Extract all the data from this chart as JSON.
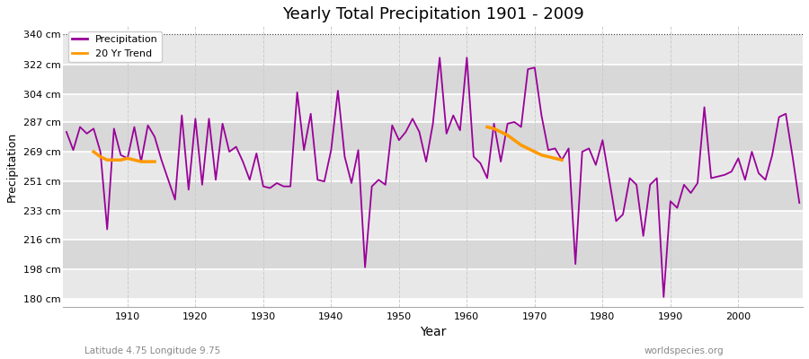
{
  "title": "Yearly Total Precipitation 1901 - 2009",
  "xlabel": "Year",
  "ylabel": "Precipitation",
  "subtitle_left": "Latitude 4.75 Longitude 9.75",
  "subtitle_right": "worldspecies.org",
  "ytick_labels": [
    "180 cm",
    "198 cm",
    "216 cm",
    "233 cm",
    "251 cm",
    "269 cm",
    "287 cm",
    "304 cm",
    "322 cm",
    "340 cm"
  ],
  "ytick_values": [
    180,
    198,
    216,
    233,
    251,
    269,
    287,
    304,
    322,
    340
  ],
  "ylim": [
    175,
    345
  ],
  "xlim": [
    1901,
    2009
  ],
  "years": [
    1901,
    1902,
    1903,
    1904,
    1905,
    1906,
    1907,
    1908,
    1909,
    1910,
    1911,
    1912,
    1913,
    1914,
    1915,
    1916,
    1917,
    1918,
    1919,
    1920,
    1921,
    1922,
    1923,
    1924,
    1925,
    1926,
    1927,
    1928,
    1929,
    1930,
    1931,
    1932,
    1933,
    1934,
    1935,
    1936,
    1937,
    1938,
    1939,
    1940,
    1941,
    1942,
    1943,
    1944,
    1945,
    1946,
    1947,
    1948,
    1949,
    1950,
    1951,
    1952,
    1953,
    1954,
    1955,
    1956,
    1957,
    1958,
    1959,
    1960,
    1961,
    1962,
    1963,
    1964,
    1965,
    1966,
    1967,
    1968,
    1969,
    1970,
    1971,
    1972,
    1973,
    1974,
    1975,
    1976,
    1977,
    1978,
    1979,
    1980,
    1981,
    1982,
    1983,
    1984,
    1985,
    1986,
    1987,
    1988,
    1989,
    1990,
    1991,
    1992,
    1993,
    1994,
    1995,
    1996,
    1997,
    1998,
    1999,
    2000,
    2001,
    2002,
    2003,
    2004,
    2005,
    2006,
    2007,
    2008,
    2009
  ],
  "precipitation": [
    281,
    270,
    284,
    280,
    283,
    269,
    222,
    283,
    267,
    265,
    284,
    263,
    285,
    278,
    264,
    252,
    240,
    291,
    246,
    289,
    249,
    289,
    252,
    286,
    269,
    272,
    263,
    252,
    268,
    248,
    247,
    250,
    248,
    248,
    305,
    270,
    292,
    252,
    251,
    270,
    306,
    266,
    250,
    270,
    199,
    248,
    252,
    249,
    285,
    276,
    281,
    289,
    281,
    263,
    286,
    326,
    280,
    291,
    282,
    326,
    266,
    262,
    253,
    286,
    263,
    286,
    287,
    284,
    319,
    320,
    291,
    270,
    271,
    264,
    271,
    201,
    269,
    271,
    261,
    276,
    252,
    227,
    231,
    253,
    249,
    218,
    249,
    253,
    181,
    239,
    235,
    249,
    244,
    250,
    296,
    253,
    254,
    255,
    257,
    265,
    252,
    269,
    256,
    252,
    267,
    290,
    292,
    266,
    238
  ],
  "trend_years_1": [
    1905,
    1906,
    1907,
    1908,
    1909,
    1910,
    1911,
    1912,
    1913,
    1914
  ],
  "trend_vals_1": [
    269,
    266,
    264,
    264,
    264,
    265,
    264,
    263,
    263,
    263
  ],
  "trend_years_2": [
    1963,
    1964,
    1965,
    1966,
    1967,
    1968,
    1969,
    1970,
    1971,
    1972,
    1973,
    1974
  ],
  "trend_vals_2": [
    284,
    283,
    281,
    279,
    276,
    273,
    271,
    269,
    267,
    266,
    265,
    264
  ],
  "precip_color": "#990099",
  "trend_color": "#ff9900",
  "bg_color": "#ffffff",
  "band_colors": [
    "#e8e8e8",
    "#d8d8d8"
  ],
  "top_dotted_color": "#333333"
}
